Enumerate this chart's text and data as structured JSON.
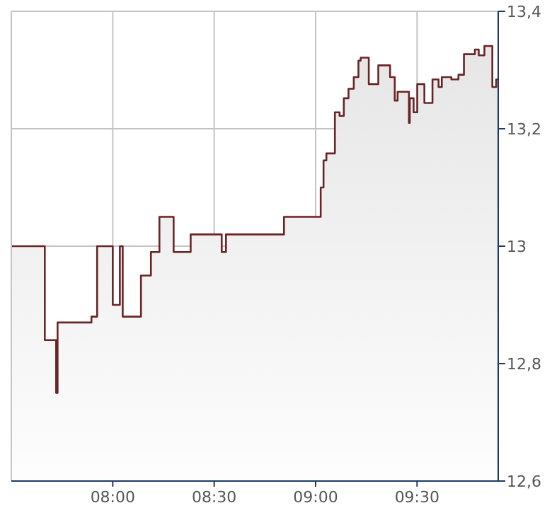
{
  "chart_data": {
    "type": "area",
    "x": [
      7.5,
      7.665,
      7.665,
      7.721,
      7.721,
      7.728,
      7.728,
      7.895,
      7.895,
      7.923,
      7.923,
      8.0,
      8.0,
      8.035,
      8.035,
      8.049,
      8.049,
      8.139,
      8.139,
      8.188,
      8.188,
      8.23,
      8.23,
      8.3,
      8.3,
      8.384,
      8.384,
      8.537,
      8.537,
      8.558,
      8.558,
      8.844,
      8.844,
      9.025,
      9.025,
      9.039,
      9.039,
      9.053,
      9.053,
      9.095,
      9.095,
      9.118,
      9.118,
      9.139,
      9.139,
      9.162,
      9.162,
      9.188,
      9.188,
      9.211,
      9.211,
      9.222,
      9.222,
      9.262,
      9.262,
      9.309,
      9.309,
      9.367,
      9.367,
      9.39,
      9.39,
      9.404,
      9.404,
      9.46,
      9.46,
      9.464,
      9.464,
      9.483,
      9.483,
      9.501,
      9.501,
      9.536,
      9.536,
      9.576,
      9.576,
      9.606,
      9.606,
      9.622,
      9.622,
      9.669,
      9.669,
      9.704,
      9.704,
      9.731,
      9.731,
      9.785,
      9.785,
      9.804,
      9.804,
      9.832,
      9.832,
      9.871,
      9.871,
      9.89,
      9.89,
      9.9
    ],
    "series": [
      {
        "color": "#6b2426",
        "values": [
          13.0,
          13.0,
          12.84,
          12.84,
          12.75,
          12.75,
          12.87,
          12.87,
          12.88,
          12.88,
          13.0,
          13.0,
          12.9,
          12.9,
          13.0,
          13.0,
          12.88,
          12.88,
          12.95,
          12.95,
          12.99,
          12.99,
          13.05,
          13.05,
          12.99,
          12.99,
          13.02,
          13.02,
          12.99,
          12.99,
          13.02,
          13.02,
          13.05,
          13.05,
          13.1,
          13.1,
          13.146,
          13.146,
          13.158,
          13.158,
          13.228,
          13.228,
          13.222,
          13.222,
          13.252,
          13.252,
          13.268,
          13.268,
          13.288,
          13.288,
          13.316,
          13.316,
          13.321,
          13.321,
          13.276,
          13.276,
          13.308,
          13.308,
          13.288,
          13.288,
          13.248,
          13.248,
          13.263,
          13.263,
          13.21,
          13.21,
          13.252,
          13.252,
          13.228,
          13.228,
          13.276,
          13.276,
          13.244,
          13.244,
          13.284,
          13.284,
          13.271,
          13.271,
          13.288,
          13.288,
          13.284,
          13.284,
          13.292,
          13.292,
          13.327,
          13.327,
          13.335,
          13.335,
          13.325,
          13.325,
          13.341,
          13.341,
          13.271,
          13.271,
          13.284,
          13.284
        ]
      }
    ],
    "xlim": [
      7.5,
      9.9
    ],
    "xticks": [
      {
        "value": 8,
        "label": "08:00"
      },
      {
        "value": 8.5,
        "label": "08:30"
      },
      {
        "value": 9,
        "label": "09:00"
      },
      {
        "value": 9.5,
        "label": "09:30"
      }
    ],
    "ylim": [
      12.6,
      13.4
    ],
    "yticks": [
      {
        "value": 12.6,
        "label": "12,6"
      },
      {
        "value": 12.8,
        "label": "12,8"
      },
      {
        "value": 13,
        "label": "13"
      },
      {
        "value": 13.2,
        "label": "13,2"
      },
      {
        "value": 13.4,
        "label": "13,4"
      }
    ],
    "grid": true
  }
}
